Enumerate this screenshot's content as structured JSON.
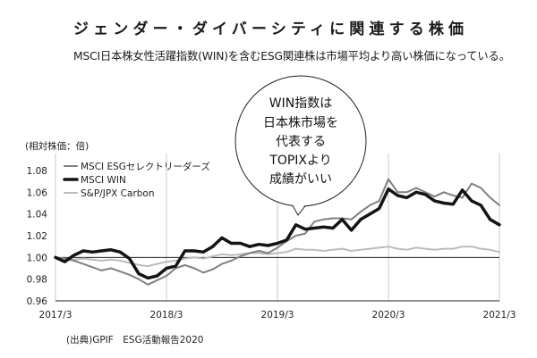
{
  "chart_data": {
    "type": "line",
    "title": "ジェンダー・ダイバーシティに関連する株価",
    "subtitle": "MSCI日本株女性活躍指数(WIN)を含むESG関連株は市場平均より高い株価になっている。",
    "xlabel": "",
    "ylabel": "(相対株価：倍)",
    "xlim": [
      2017.167,
      2021.167
    ],
    "ylim": [
      0.96,
      1.08
    ],
    "yticks": [
      0.96,
      0.98,
      1.0,
      1.02,
      1.04,
      1.06,
      1.08
    ],
    "xticks": [
      {
        "label": "2017/3",
        "value": 2017.167
      },
      {
        "label": "2018/3",
        "value": 2018.167
      },
      {
        "label": "2019/3",
        "value": 2019.167
      },
      {
        "label": "2020/3",
        "value": 2020.167
      },
      {
        "label": "2021/3",
        "value": 2021.167
      }
    ],
    "grid": true,
    "legend_position": "top-left",
    "reference_line": 1.0,
    "x": [
      2017.167,
      2017.25,
      2017.333,
      2017.417,
      2017.5,
      2017.583,
      2017.667,
      2017.75,
      2017.833,
      2017.917,
      2018.0,
      2018.083,
      2018.167,
      2018.25,
      2018.333,
      2018.417,
      2018.5,
      2018.583,
      2018.667,
      2018.75,
      2018.833,
      2018.917,
      2019.0,
      2019.083,
      2019.167,
      2019.25,
      2019.333,
      2019.417,
      2019.5,
      2019.583,
      2019.667,
      2019.75,
      2019.833,
      2019.917,
      2020.0,
      2020.083,
      2020.167,
      2020.25,
      2020.333,
      2020.417,
      2020.5,
      2020.583,
      2020.667,
      2020.75,
      2020.833,
      2020.917,
      2021.0,
      2021.083,
      2021.167
    ],
    "series": [
      {
        "name": "MSCI ESGセレクトリーダーズ",
        "color": "#808080",
        "values": [
          1.0,
          0.999,
          0.997,
          0.994,
          0.991,
          0.988,
          0.99,
          0.987,
          0.984,
          0.98,
          0.975,
          0.979,
          0.983,
          0.99,
          0.993,
          0.99,
          0.986,
          0.989,
          0.994,
          0.997,
          1.001,
          1.004,
          1.006,
          1.004,
          1.009,
          1.015,
          1.02,
          1.022,
          1.033,
          1.035,
          1.036,
          1.036,
          1.035,
          1.042,
          1.048,
          1.052,
          1.072,
          1.06,
          1.06,
          1.064,
          1.06,
          1.056,
          1.06,
          1.057,
          1.055,
          1.068,
          1.064,
          1.055,
          1.048
        ]
      },
      {
        "name": "MSCI WIN",
        "color": "#141414",
        "values": [
          1.0,
          0.996,
          1.002,
          1.006,
          1.005,
          1.006,
          1.007,
          1.005,
          0.999,
          0.985,
          0.981,
          0.983,
          0.99,
          0.992,
          1.006,
          1.006,
          1.005,
          1.01,
          1.018,
          1.013,
          1.013,
          1.01,
          1.012,
          1.011,
          1.013,
          1.016,
          1.03,
          1.026,
          1.027,
          1.028,
          1.027,
          1.035,
          1.025,
          1.035,
          1.04,
          1.045,
          1.063,
          1.057,
          1.055,
          1.06,
          1.058,
          1.052,
          1.05,
          1.049,
          1.062,
          1.052,
          1.048,
          1.035,
          1.03
        ]
      },
      {
        "name": "S&P/JPX Carbon",
        "color": "#bcbcbc",
        "values": [
          1.0,
          0.999,
          0.998,
          0.999,
          0.998,
          0.997,
          0.998,
          0.997,
          0.995,
          0.993,
          0.992,
          0.994,
          0.996,
          0.997,
          0.999,
          1.0,
          0.999,
          1.001,
          1.003,
          1.002,
          1.003,
          1.004,
          1.004,
          1.003,
          1.004,
          1.005,
          1.008,
          1.007,
          1.007,
          1.006,
          1.007,
          1.008,
          1.006,
          1.007,
          1.008,
          1.009,
          1.01,
          1.008,
          1.007,
          1.009,
          1.008,
          1.007,
          1.008,
          1.008,
          1.01,
          1.01,
          1.008,
          1.007,
          1.005
        ]
      }
    ]
  },
  "callout": {
    "lines": [
      "WIN指数は",
      "日本株市場を",
      "代表する",
      "TOPIXより",
      "成績がいい"
    ]
  },
  "source": "(出典)GPIF　ESG活動報告2020"
}
